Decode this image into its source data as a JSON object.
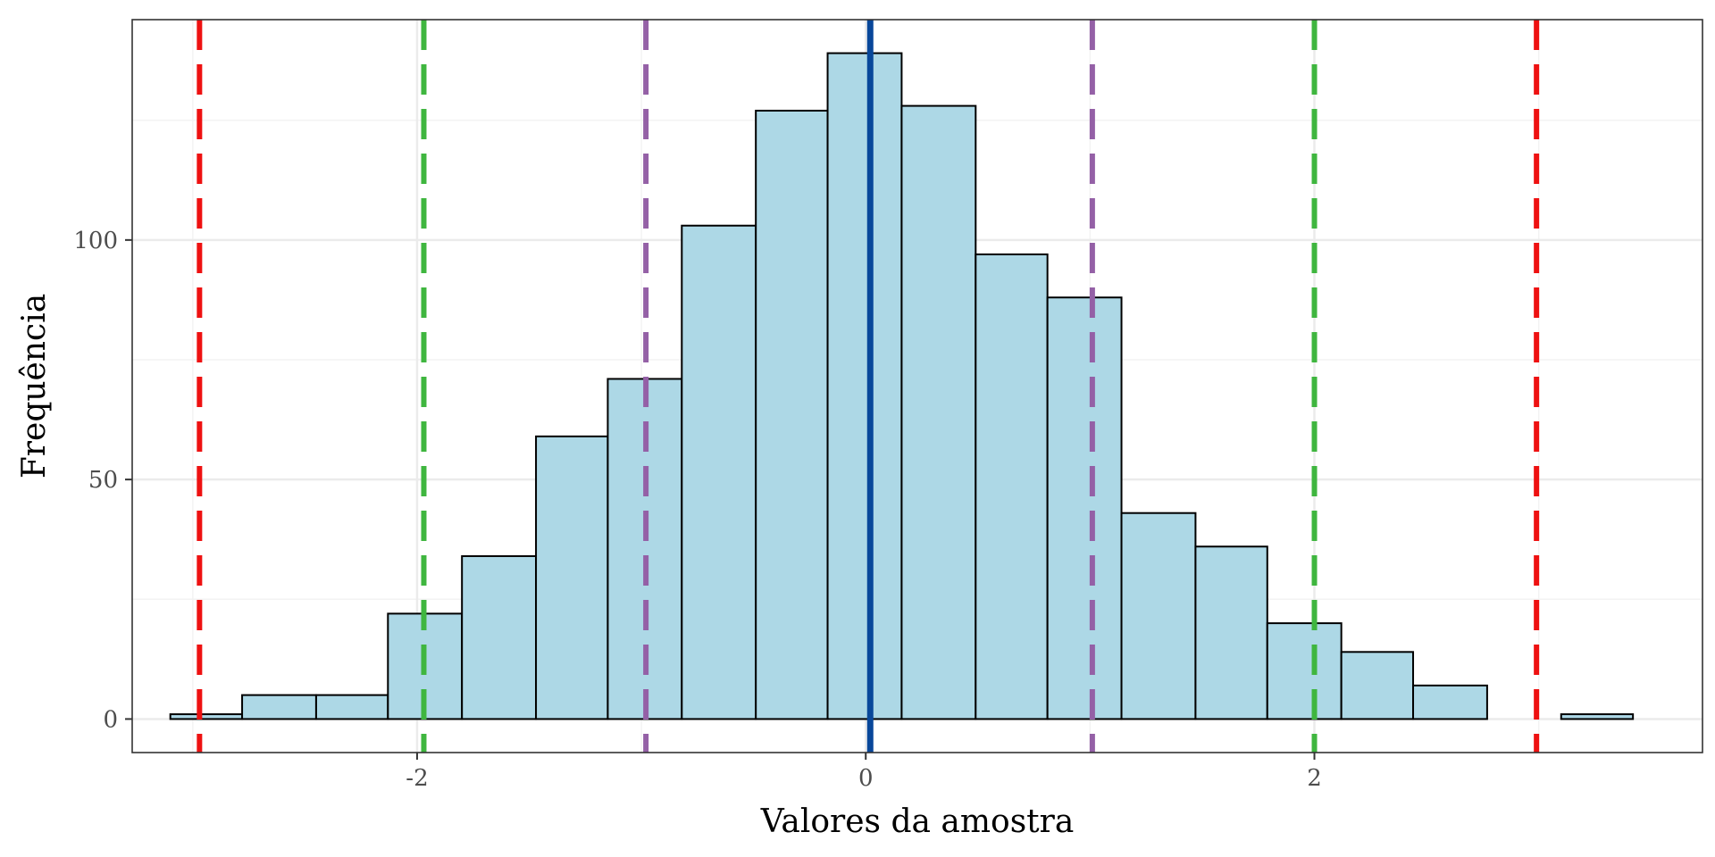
{
  "chart_data": {
    "type": "bar",
    "subtype": "histogram",
    "xlabel": "Valores da amostra",
    "ylabel": "Frequência",
    "xlim": [
      -3.27,
      3.73
    ],
    "ylim": [
      -7,
      146
    ],
    "x_ticks": [
      {
        "value": -2,
        "label": "-2"
      },
      {
        "value": 0,
        "label": "0"
      },
      {
        "value": 2,
        "label": "2"
      }
    ],
    "y_ticks": [
      {
        "value": 0,
        "label": "0"
      },
      {
        "value": 50,
        "label": "50"
      },
      {
        "value": 100,
        "label": "100"
      }
    ],
    "bins": [
      {
        "x0": -3.1,
        "x1": -2.78,
        "count": 1
      },
      {
        "x0": -2.78,
        "x1": -2.45,
        "count": 5
      },
      {
        "x0": -2.45,
        "x1": -2.13,
        "count": 5
      },
      {
        "x0": -2.13,
        "x1": -1.8,
        "count": 22
      },
      {
        "x0": -1.8,
        "x1": -1.47,
        "count": 34
      },
      {
        "x0": -1.47,
        "x1": -1.15,
        "count": 59
      },
      {
        "x0": -1.15,
        "x1": -0.82,
        "count": 71
      },
      {
        "x0": -0.82,
        "x1": -0.49,
        "count": 103
      },
      {
        "x0": -0.49,
        "x1": -0.17,
        "count": 127
      },
      {
        "x0": -0.17,
        "x1": 0.16,
        "count": 139
      },
      {
        "x0": 0.16,
        "x1": 0.49,
        "count": 128
      },
      {
        "x0": 0.49,
        "x1": 0.81,
        "count": 97
      },
      {
        "x0": 0.81,
        "x1": 1.14,
        "count": 88
      },
      {
        "x0": 1.14,
        "x1": 1.47,
        "count": 43
      },
      {
        "x0": 1.47,
        "x1": 1.79,
        "count": 36
      },
      {
        "x0": 1.79,
        "x1": 2.12,
        "count": 20
      },
      {
        "x0": 2.12,
        "x1": 2.44,
        "count": 14
      },
      {
        "x0": 2.44,
        "x1": 2.77,
        "count": 7
      },
      {
        "x0": 2.77,
        "x1": 3.1,
        "count": 0
      },
      {
        "x0": 3.1,
        "x1": 3.42,
        "count": 1
      }
    ],
    "vlines": [
      {
        "x": 0.02,
        "color": "#08479a",
        "style": "solid"
      },
      {
        "x": -0.98,
        "color": "#9460a6",
        "style": "dashed"
      },
      {
        "x": 1.01,
        "color": "#9460a6",
        "style": "dashed"
      },
      {
        "x": -1.97,
        "color": "#3fb63f",
        "style": "dashed"
      },
      {
        "x": 2.0,
        "color": "#3fb63f",
        "style": "dashed"
      },
      {
        "x": -2.97,
        "color": "#ee1111",
        "style": "dashed"
      },
      {
        "x": 2.99,
        "color": "#ee1111",
        "style": "dashed"
      }
    ],
    "colors": {
      "bar_fill": "#add8e6",
      "bar_stroke": "#000000",
      "grid_major": "#ebebeb",
      "grid_minor": "#f3f3f3",
      "panel_border": "#333333"
    },
    "grid": true,
    "legend": "none"
  }
}
